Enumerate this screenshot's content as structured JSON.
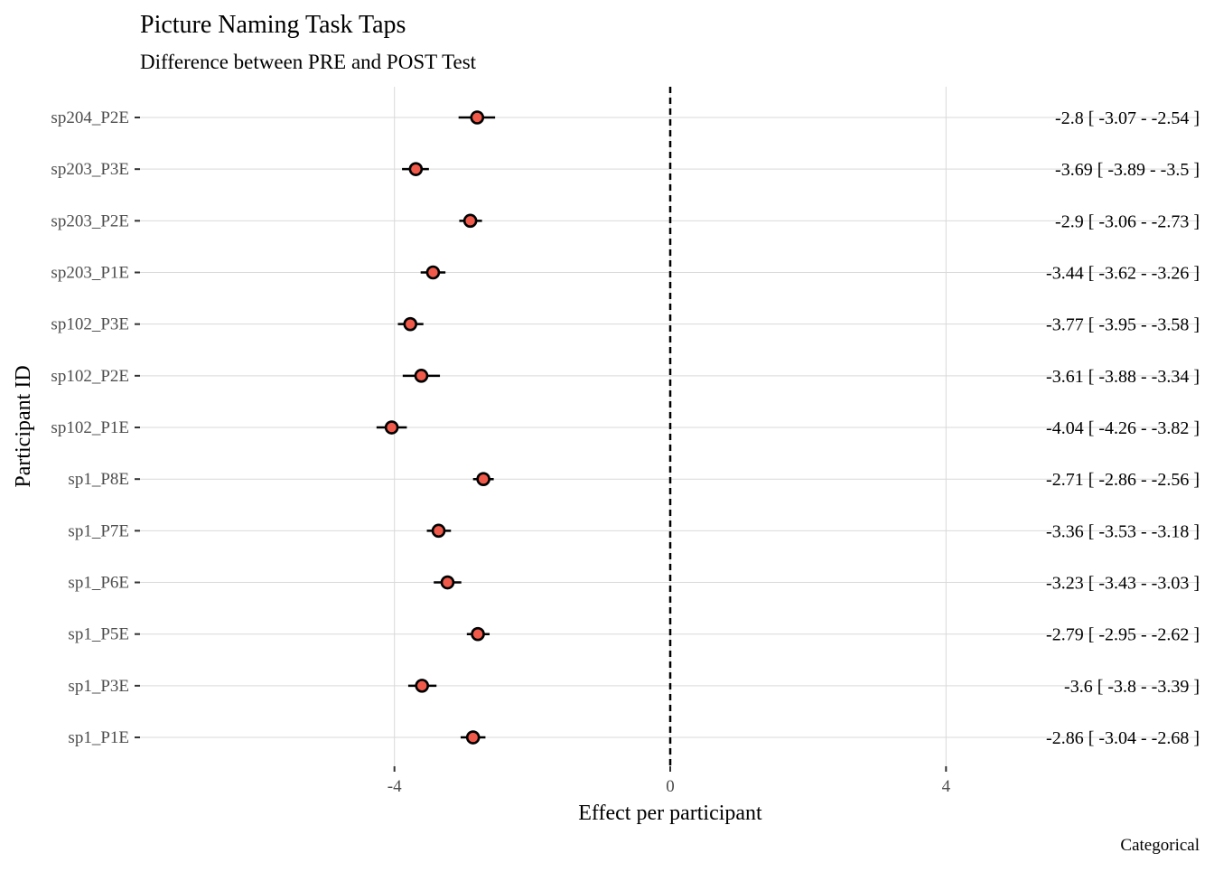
{
  "chart_data": {
    "type": "forest",
    "title": "Picture Naming Task Taps",
    "subtitle": "Difference between PRE and POST Test",
    "xlabel": "Effect per participant",
    "ylabel": "Participant ID",
    "caption": "Categorical",
    "xlim": [
      -7.45,
      7.45
    ],
    "x_ticks": [
      -4,
      0,
      4
    ],
    "x_tick_labels": [
      "-4",
      "0",
      "4"
    ],
    "reference_line": 0,
    "point_color": "#F05A4A",
    "point_stroke": "#000000",
    "grid": true,
    "rows": [
      {
        "id": "sp204_P2E",
        "estimate": -2.8,
        "low": -3.07,
        "high": -2.54,
        "label": "-2.8 [ -3.07 - -2.54 ]"
      },
      {
        "id": "sp203_P3E",
        "estimate": -3.69,
        "low": -3.89,
        "high": -3.5,
        "label": "-3.69 [ -3.89 - -3.5 ]"
      },
      {
        "id": "sp203_P2E",
        "estimate": -2.9,
        "low": -3.06,
        "high": -2.73,
        "label": "-2.9 [ -3.06 - -2.73 ]"
      },
      {
        "id": "sp203_P1E",
        "estimate": -3.44,
        "low": -3.62,
        "high": -3.26,
        "label": "-3.44 [ -3.62 - -3.26 ]"
      },
      {
        "id": "sp102_P3E",
        "estimate": -3.77,
        "low": -3.95,
        "high": -3.58,
        "label": "-3.77 [ -3.95 - -3.58 ]"
      },
      {
        "id": "sp102_P2E",
        "estimate": -3.61,
        "low": -3.88,
        "high": -3.34,
        "label": "-3.61 [ -3.88 - -3.34 ]"
      },
      {
        "id": "sp102_P1E",
        "estimate": -4.04,
        "low": -4.26,
        "high": -3.82,
        "label": "-4.04 [ -4.26 - -3.82 ]"
      },
      {
        "id": "sp1_P8E",
        "estimate": -2.71,
        "low": -2.86,
        "high": -2.56,
        "label": "-2.71 [ -2.86 - -2.56 ]"
      },
      {
        "id": "sp1_P7E",
        "estimate": -3.36,
        "low": -3.53,
        "high": -3.18,
        "label": "-3.36 [ -3.53 - -3.18 ]"
      },
      {
        "id": "sp1_P6E",
        "estimate": -3.23,
        "low": -3.43,
        "high": -3.03,
        "label": "-3.23 [ -3.43 - -3.03 ]"
      },
      {
        "id": "sp1_P5E",
        "estimate": -2.79,
        "low": -2.95,
        "high": -2.62,
        "label": "-2.79 [ -2.95 - -2.62 ]"
      },
      {
        "id": "sp1_P3E",
        "estimate": -3.6,
        "low": -3.8,
        "high": -3.39,
        "label": "-3.6 [ -3.8 - -3.39 ]"
      },
      {
        "id": "sp1_P1E",
        "estimate": -2.86,
        "low": -3.04,
        "high": -2.68,
        "label": "-2.86 [ -3.04 - -2.68 ]"
      }
    ]
  }
}
